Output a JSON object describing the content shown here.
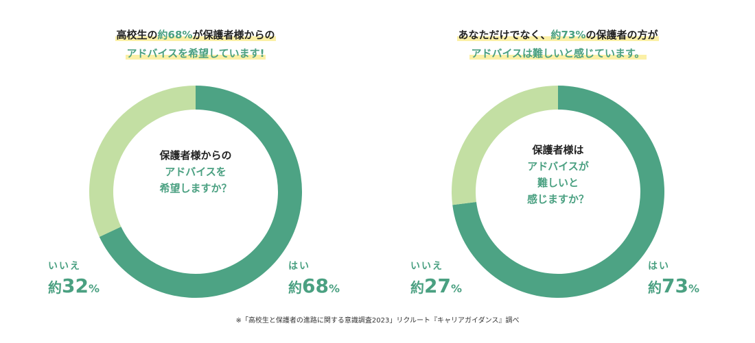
{
  "colors": {
    "primary": "#4da384",
    "secondary": "#c3dfa3",
    "accent_text": "#4aa081",
    "highlight": "#fbf0a6"
  },
  "chart_data": [
    {
      "type": "pie",
      "title_lines": [
        {
          "parts": [
            {
              "t": "高校生の",
              "g": false
            },
            {
              "t": "約68%",
              "g": true
            },
            {
              "t": "が保護者様からの",
              "g": false
            }
          ]
        },
        {
          "parts": [
            {
              "t": "アドバイスを希望しています!",
              "g": true
            }
          ]
        }
      ],
      "center_lines": [
        {
          "text": "保護者様からの",
          "green": false
        },
        {
          "text": "アドバイスを",
          "green": true
        },
        {
          "text": "希望しますか？",
          "green": true
        }
      ],
      "slices": [
        {
          "label": "はい",
          "value": 68,
          "prefix": "約",
          "unit": "%",
          "color": "#4da384"
        },
        {
          "label": "いいえ",
          "value": 32,
          "prefix": "約",
          "unit": "%",
          "color": "#c3dfa3"
        }
      ]
    },
    {
      "type": "pie",
      "title_lines": [
        {
          "parts": [
            {
              "t": "あなただけでなく、",
              "g": false
            },
            {
              "t": "約73%",
              "g": true
            },
            {
              "t": "の保護者の方が",
              "g": false
            }
          ]
        },
        {
          "parts": [
            {
              "t": "アドバイスは難しいと感じています。",
              "g": true
            }
          ]
        }
      ],
      "center_lines": [
        {
          "text": "保護者様は",
          "green": false
        },
        {
          "text": "アドバイスが",
          "green": true
        },
        {
          "text": "難しいと",
          "green": true
        },
        {
          "text": "感じますか？",
          "green": true
        }
      ],
      "slices": [
        {
          "label": "はい",
          "value": 73,
          "prefix": "約",
          "unit": "%",
          "color": "#4da384"
        },
        {
          "label": "いいえ",
          "value": 27,
          "prefix": "約",
          "unit": "%",
          "color": "#c3dfa3"
        }
      ]
    }
  ],
  "footnote": "※「高校生と保護者の進路に関する意識調査2023」リクルート『キャリアガイダンス』調べ"
}
